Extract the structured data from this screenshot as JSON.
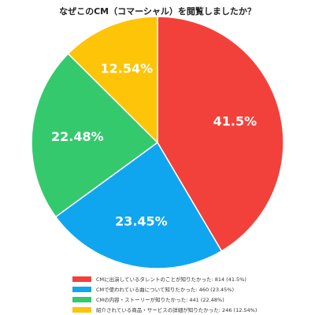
{
  "chart_data": {
    "type": "pie",
    "title": "なぜこのCM（コマーシャル）を閲覧しましたか？",
    "slices": [
      {
        "label": "CMに出演しているタレントのことが知りたかった",
        "count": 814,
        "percent": 41.5,
        "value_label": "41.5%",
        "legend_text": "CMに出演しているタレントのことが知りたかった: 814 (41.5%)",
        "color": "#f2413b"
      },
      {
        "label": "CMで使われている曲について知りたかった",
        "count": 460,
        "percent": 23.45,
        "value_label": "23.45%",
        "legend_text": "CMで使われている曲について知りたかった: 460 (23.45%)",
        "color": "#10a6ef"
      },
      {
        "label": "CMの内容・ストーリーが知りたかった",
        "count": 441,
        "percent": 22.48,
        "value_label": "22.48%",
        "legend_text": "CMの内容・ストーリーが知りたかった: 441 (22.48%)",
        "color": "#35c96e"
      },
      {
        "label": "紹介されている商品・サービスの詳細が知りたかった",
        "count": 246,
        "percent": 12.54,
        "value_label": "12.54%",
        "legend_text": "紹介されている商品・サービスの詳細が知りたかった: 246 (12.54%)",
        "color": "#fec407"
      }
    ],
    "start_angle": "12 o'clock",
    "direction": "clockwise",
    "legend_position": "bottom"
  }
}
